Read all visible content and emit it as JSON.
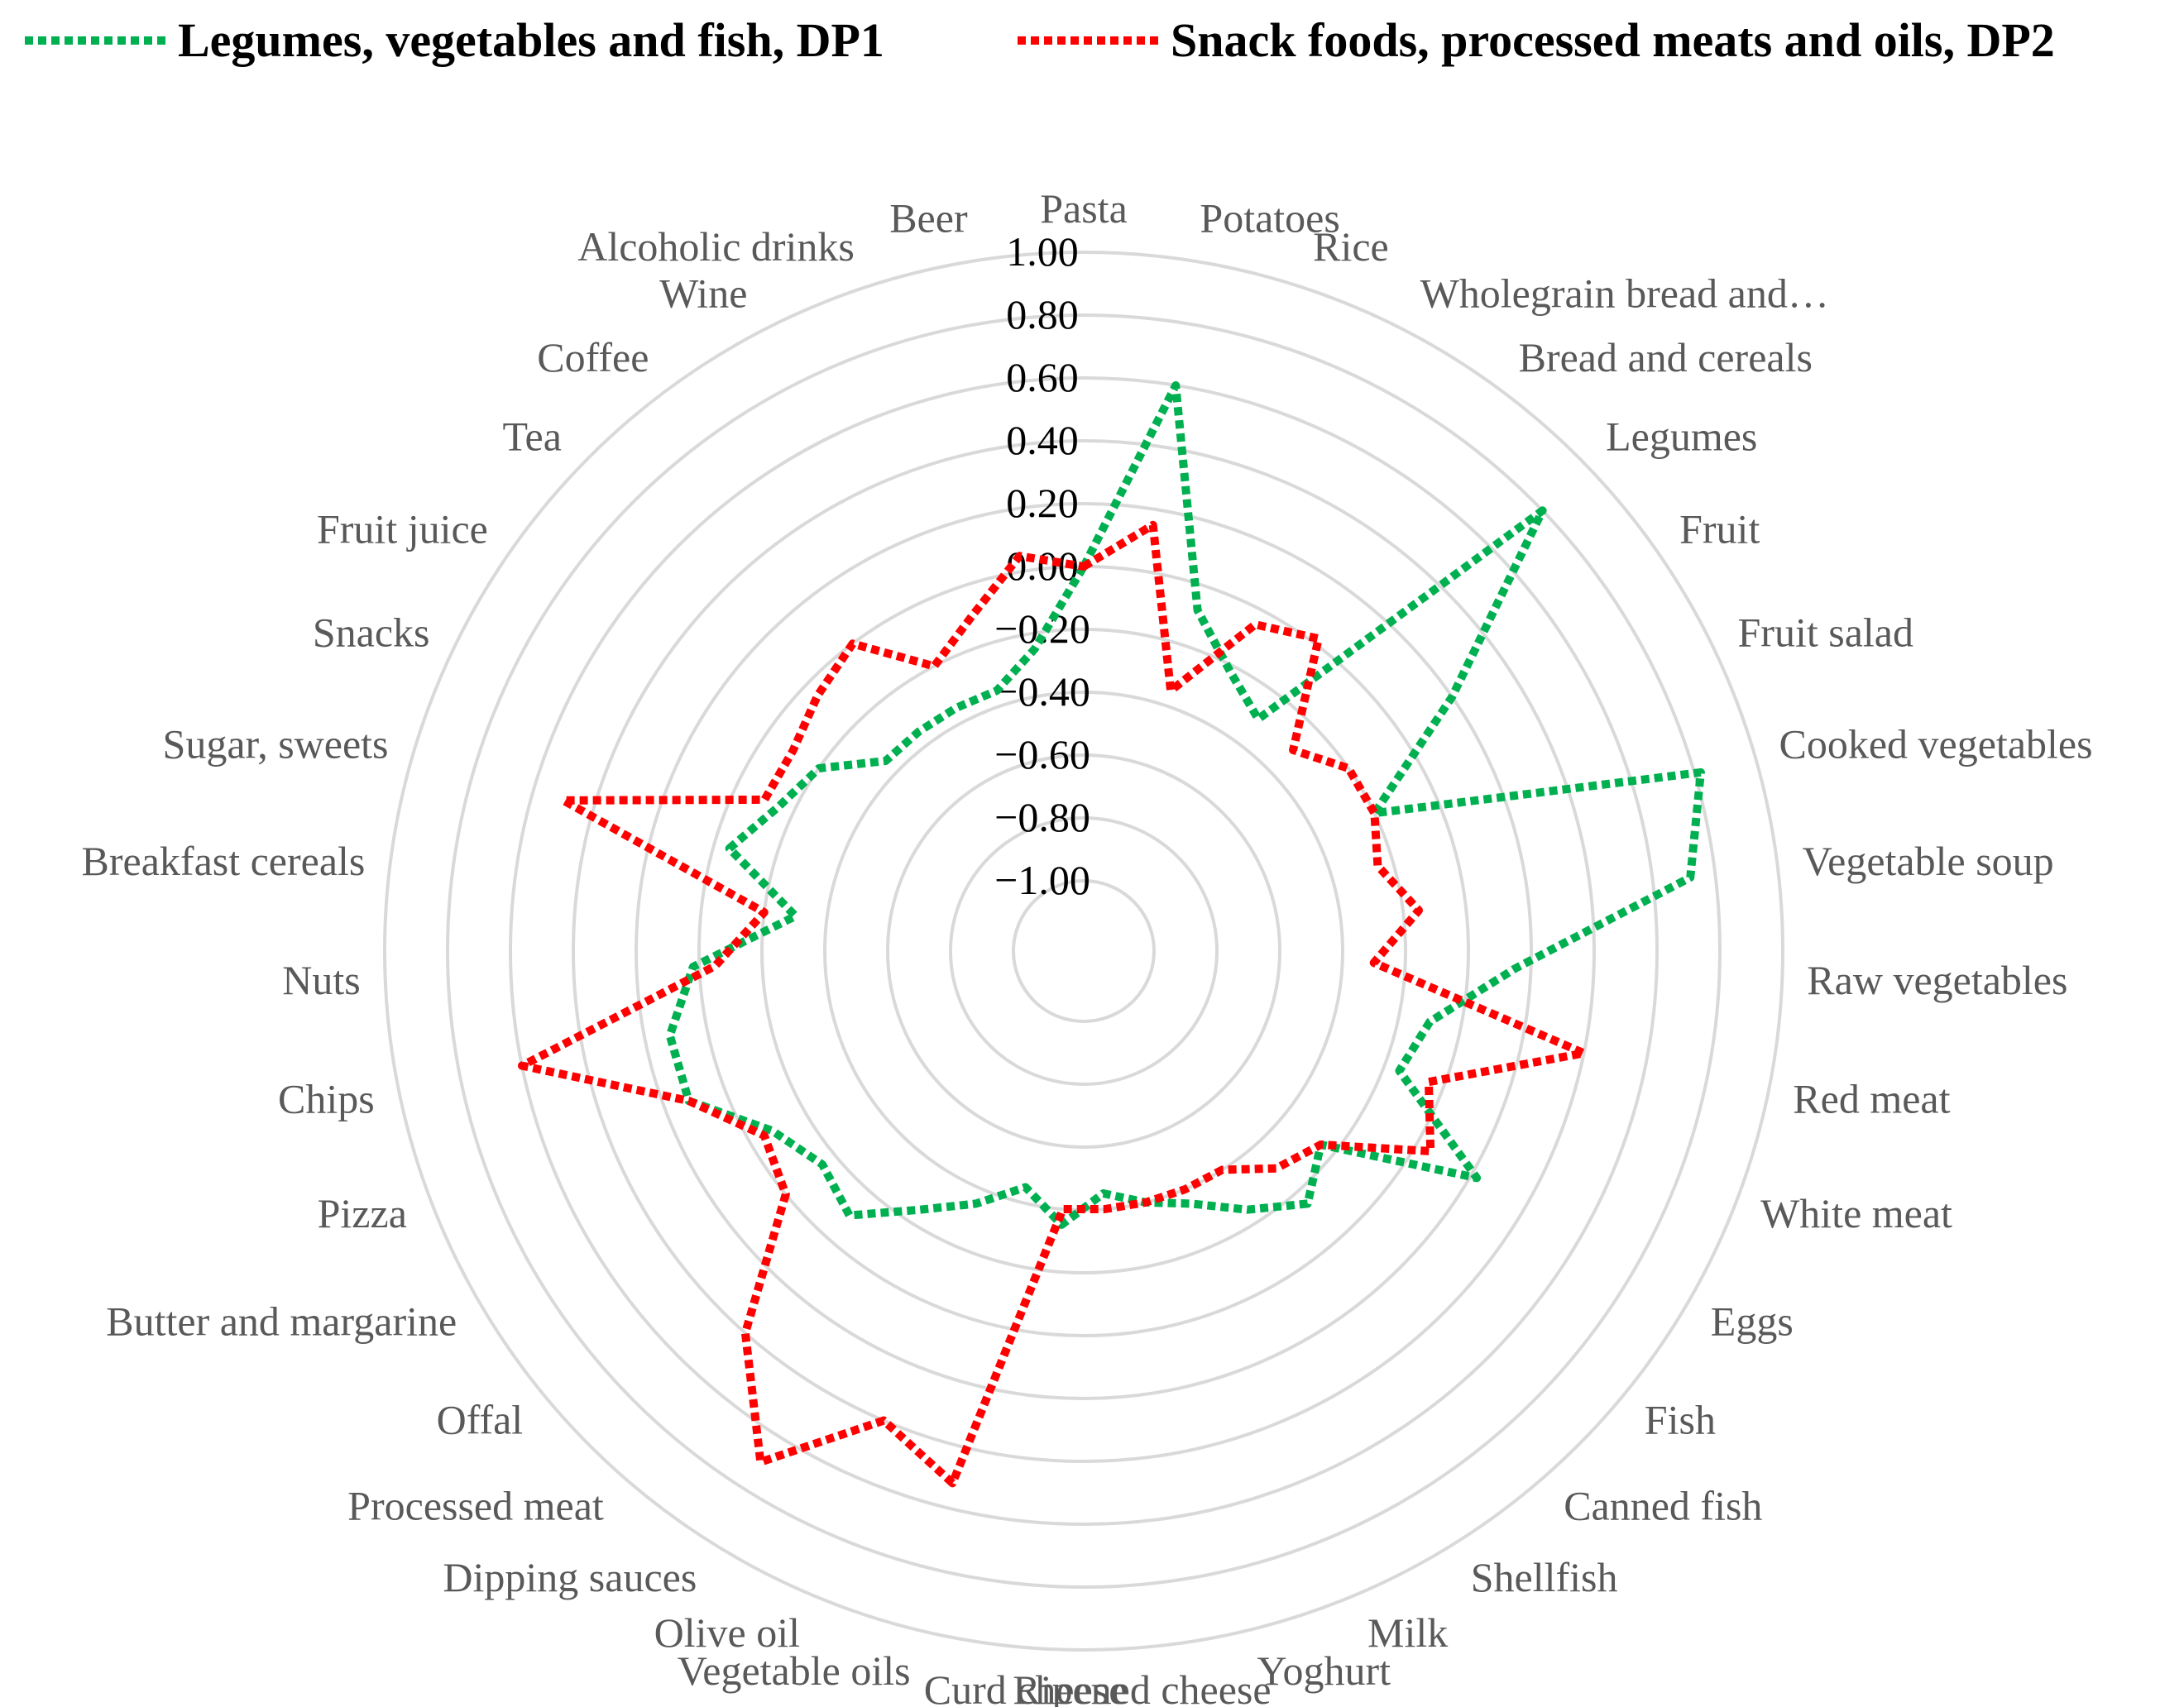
{
  "chart_data": {
    "type": "radar",
    "title": "",
    "legend_position": "top",
    "axis_range": [
      -1.0,
      1.0
    ],
    "tick_labels": [
      "−1.00",
      "−0.80",
      "−0.60",
      "−0.40",
      "−0.20",
      "0.00",
      "0.20",
      "0.40",
      "0.60",
      "0.80",
      "1.00"
    ],
    "categories": [
      "Pasta",
      "Potatoes",
      "Rice",
      "Wholegrain bread and…",
      "Bread and cereals",
      "Legumes",
      "Fruit",
      "Fruit salad",
      "Cooked vegetables",
      "Vegetable soup",
      "Raw vegetables",
      "Red meat",
      "White meat",
      "Eggs",
      "Fish",
      "Canned fish",
      "Shellfish",
      "Milk",
      "Yoghurt",
      "Ripened cheese",
      "Curd cheese",
      "Vegetable oils",
      "Olive oil",
      "Dipping sauces",
      "Processed meat",
      "Offal",
      "Butter and margarine",
      "Pizza",
      "Chips",
      "Nuts",
      "Breakfast cereals",
      "Sugar, sweets",
      "Snacks",
      "Fruit juice",
      "Tea",
      "Coffee",
      "Wine",
      "Alcoholic drinks",
      "Beer"
    ],
    "series": [
      {
        "name": "Legumes, vegetables and fish, DP1",
        "color": "#00b050",
        "values": [
          0.0,
          0.6,
          -0.08,
          -0.22,
          -0.3,
          0.8,
          0.2,
          -0.2,
          0.82,
          0.72,
          0.15,
          -0.1,
          -0.15,
          0.22,
          -0.25,
          -0.15,
          -0.25,
          -0.35,
          -0.4,
          -0.45,
          -0.35,
          -0.45,
          -0.35,
          -0.25,
          -0.1,
          -0.15,
          -0.08,
          0.12,
          0.12,
          0.02,
          -0.3,
          -0.05,
          -0.15,
          -0.2,
          -0.35,
          -0.35,
          -0.35,
          -0.35,
          -0.25
        ]
      },
      {
        "name": "Snack foods, processed meats and oils, DP2",
        "color": "#ff0000",
        "values": [
          0.0,
          0.15,
          -0.35,
          -0.05,
          0.02,
          -0.3,
          -0.2,
          -0.2,
          -0.25,
          -0.15,
          -0.3,
          0.4,
          -0.05,
          0.05,
          -0.25,
          -0.3,
          -0.4,
          -0.4,
          -0.4,
          -0.4,
          -0.4,
          0.52,
          0.4,
          0.7,
          0.4,
          0.0,
          -0.05,
          0.12,
          0.6,
          -0.05,
          -0.2,
          0.5,
          -0.1,
          -0.1,
          -0.05,
          0.0,
          -0.2,
          -0.1,
          0.05
        ]
      }
    ]
  }
}
